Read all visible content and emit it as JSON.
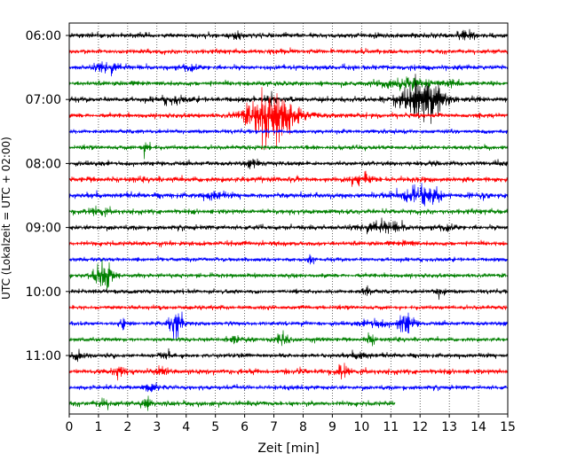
{
  "chart_data": {
    "type": "line",
    "title": "",
    "xlabel": "Zeit  [min]",
    "ylabel": "UTC (Lokalzeit = UTC + 02:00)",
    "xlim": [
      0,
      15
    ],
    "x_ticks": [
      0,
      1,
      2,
      3,
      4,
      5,
      6,
      7,
      8,
      9,
      10,
      11,
      12,
      13,
      14,
      15
    ],
    "y_tick_labels": [
      "06:00",
      "07:00",
      "08:00",
      "09:00",
      "10:00",
      "11:00"
    ],
    "row_interval_minutes": 15,
    "grid": "vertical dotted at each minute",
    "colors": [
      "#000000",
      "#ff0000",
      "#0000ff",
      "#008000"
    ],
    "rows": [
      {
        "start": "06:00",
        "color": "#000000",
        "end_min": 15,
        "amp": 0.18,
        "events": [
          {
            "t": 13.6,
            "amp": 0.35,
            "dur": 0.6
          },
          {
            "t": 5.7,
            "amp": 0.22,
            "dur": 0.3
          }
        ]
      },
      {
        "start": "06:15",
        "color": "#ff0000",
        "end_min": 15,
        "amp": 0.16,
        "events": [
          {
            "t": 7.2,
            "amp": 0.2,
            "dur": 0.5
          }
        ]
      },
      {
        "start": "06:30",
        "color": "#0000ff",
        "end_min": 15,
        "amp": 0.18,
        "events": [
          {
            "t": 1.3,
            "amp": 0.3,
            "dur": 0.7
          },
          {
            "t": 4.2,
            "amp": 0.22,
            "dur": 0.5
          }
        ]
      },
      {
        "start": "06:45",
        "color": "#008000",
        "end_min": 15,
        "amp": 0.18,
        "events": [
          {
            "t": 11.5,
            "amp": 0.35,
            "dur": 1.5
          },
          {
            "t": 13.2,
            "amp": 0.25,
            "dur": 0.5
          }
        ]
      },
      {
        "start": "07:00",
        "color": "#000000",
        "end_min": 15,
        "amp": 0.2,
        "events": [
          {
            "t": 12.1,
            "amp": 1.6,
            "dur": 1.2
          },
          {
            "t": 6.9,
            "amp": 0.5,
            "dur": 0.3
          },
          {
            "t": 3.5,
            "amp": 0.22,
            "dur": 0.8
          }
        ]
      },
      {
        "start": "07:15",
        "color": "#ff0000",
        "end_min": 15,
        "amp": 0.18,
        "events": [
          {
            "t": 6.9,
            "amp": 1.9,
            "dur": 1.4
          }
        ]
      },
      {
        "start": "07:30",
        "color": "#0000ff",
        "end_min": 15,
        "amp": 0.15,
        "events": []
      },
      {
        "start": "07:45",
        "color": "#008000",
        "end_min": 15,
        "amp": 0.16,
        "events": [
          {
            "t": 2.65,
            "amp": 0.55,
            "dur": 0.3
          }
        ]
      },
      {
        "start": "08:00",
        "color": "#000000",
        "end_min": 15,
        "amp": 0.17,
        "events": [
          {
            "t": 6.3,
            "amp": 0.22,
            "dur": 0.4
          }
        ]
      },
      {
        "start": "08:15",
        "color": "#ff0000",
        "end_min": 15,
        "amp": 0.2,
        "events": [
          {
            "t": 10.0,
            "amp": 0.3,
            "dur": 0.8
          }
        ]
      },
      {
        "start": "08:30",
        "color": "#0000ff",
        "end_min": 15,
        "amp": 0.2,
        "events": [
          {
            "t": 12.0,
            "amp": 0.65,
            "dur": 1.2
          },
          {
            "t": 5.0,
            "amp": 0.25,
            "dur": 0.6
          }
        ]
      },
      {
        "start": "08:45",
        "color": "#008000",
        "end_min": 15,
        "amp": 0.18,
        "events": [
          {
            "t": 1.0,
            "amp": 0.2,
            "dur": 0.6
          }
        ]
      },
      {
        "start": "09:00",
        "color": "#000000",
        "end_min": 15,
        "amp": 0.18,
        "events": [
          {
            "t": 10.8,
            "amp": 0.35,
            "dur": 1.2
          },
          {
            "t": 13.0,
            "amp": 0.22,
            "dur": 0.5
          }
        ]
      },
      {
        "start": "09:15",
        "color": "#ff0000",
        "end_min": 15,
        "amp": 0.17,
        "events": [
          {
            "t": 11.6,
            "amp": 0.22,
            "dur": 0.4
          }
        ]
      },
      {
        "start": "09:30",
        "color": "#0000ff",
        "end_min": 15,
        "amp": 0.15,
        "events": [
          {
            "t": 8.3,
            "amp": 0.3,
            "dur": 0.2
          }
        ]
      },
      {
        "start": "09:45",
        "color": "#008000",
        "end_min": 15,
        "amp": 0.16,
        "events": [
          {
            "t": 1.15,
            "amp": 1.0,
            "dur": 0.6
          }
        ]
      },
      {
        "start": "10:00",
        "color": "#000000",
        "end_min": 15,
        "amp": 0.15,
        "events": [
          {
            "t": 10.2,
            "amp": 0.3,
            "dur": 0.3
          },
          {
            "t": 12.7,
            "amp": 0.4,
            "dur": 0.3
          }
        ]
      },
      {
        "start": "10:15",
        "color": "#ff0000",
        "end_min": 15,
        "amp": 0.15,
        "events": []
      },
      {
        "start": "10:30",
        "color": "#0000ff",
        "end_min": 15,
        "amp": 0.15,
        "events": [
          {
            "t": 1.8,
            "amp": 0.4,
            "dur": 0.2
          },
          {
            "t": 3.65,
            "amp": 0.9,
            "dur": 0.4
          },
          {
            "t": 11.5,
            "amp": 0.8,
            "dur": 0.5
          },
          {
            "t": 10.5,
            "amp": 0.25,
            "dur": 0.8
          }
        ]
      },
      {
        "start": "10:45",
        "color": "#008000",
        "end_min": 15,
        "amp": 0.15,
        "events": [
          {
            "t": 7.3,
            "amp": 0.5,
            "dur": 0.4
          },
          {
            "t": 10.3,
            "amp": 0.4,
            "dur": 0.3
          },
          {
            "t": 5.6,
            "amp": 0.2,
            "dur": 0.5
          }
        ]
      },
      {
        "start": "11:00",
        "color": "#000000",
        "end_min": 15,
        "amp": 0.16,
        "events": [
          {
            "t": 0.3,
            "amp": 0.25,
            "dur": 0.4
          },
          {
            "t": 3.3,
            "amp": 0.25,
            "dur": 0.4
          },
          {
            "t": 10.0,
            "amp": 0.25,
            "dur": 0.5
          }
        ]
      },
      {
        "start": "11:15",
        "color": "#ff0000",
        "end_min": 15,
        "amp": 0.18,
        "events": [
          {
            "t": 1.7,
            "amp": 0.3,
            "dur": 0.5
          },
          {
            "t": 3.2,
            "amp": 0.25,
            "dur": 0.5
          },
          {
            "t": 9.35,
            "amp": 0.55,
            "dur": 0.3
          }
        ]
      },
      {
        "start": "11:30",
        "color": "#0000ff",
        "end_min": 15,
        "amp": 0.16,
        "events": [
          {
            "t": 2.8,
            "amp": 0.3,
            "dur": 0.4
          }
        ]
      },
      {
        "start": "11:45",
        "color": "#008000",
        "end_min": 11.15,
        "amp": 0.18,
        "events": [
          {
            "t": 2.65,
            "amp": 0.5,
            "dur": 0.3
          },
          {
            "t": 1.2,
            "amp": 0.22,
            "dur": 0.5
          }
        ]
      }
    ]
  }
}
